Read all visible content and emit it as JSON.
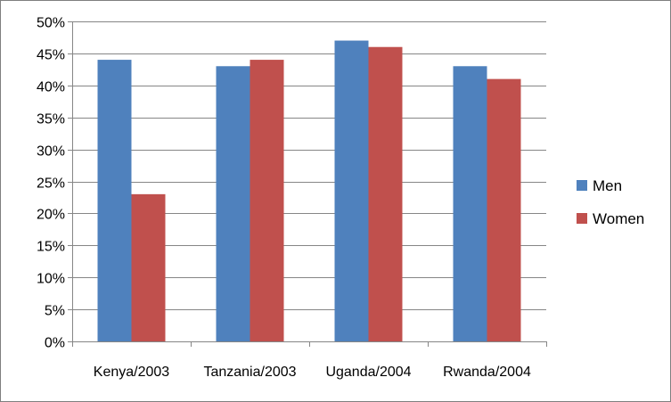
{
  "chart_data": {
    "type": "bar",
    "categories": [
      "Kenya/2003",
      "Tanzania/2003",
      "Uganda/2004",
      "Rwanda/2004"
    ],
    "series": [
      {
        "name": "Men",
        "values": [
          44,
          43,
          47,
          43
        ],
        "color": "#4f81bd"
      },
      {
        "name": "Women",
        "values": [
          23,
          44,
          46,
          41
        ],
        "color": "#c0504d"
      }
    ],
    "ylim": [
      0,
      50
    ],
    "y_tick_step": 5,
    "y_tick_suffix": "%",
    "grid": true,
    "grid_color": "#868686",
    "legend_position": "right"
  }
}
